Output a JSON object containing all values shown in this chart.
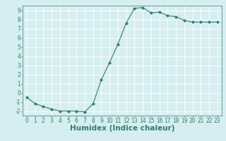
{
  "x": [
    0,
    1,
    2,
    3,
    4,
    5,
    6,
    7,
    8,
    9,
    10,
    11,
    12,
    13,
    14,
    15,
    16,
    17,
    18,
    19,
    20,
    21,
    22,
    23
  ],
  "y": [
    -0.5,
    -1.2,
    -1.5,
    -1.8,
    -2.0,
    -2.0,
    -2.0,
    -2.1,
    -1.2,
    1.4,
    3.3,
    5.3,
    7.6,
    9.2,
    9.3,
    8.7,
    8.8,
    8.4,
    8.3,
    7.9,
    7.7,
    7.7,
    7.7,
    7.7
  ],
  "line_color": "#2e7d6e",
  "marker": "D",
  "marker_size": 2.0,
  "bg_color": "#d6eef0",
  "grid_color": "#ffffff",
  "xlabel": "Humidex (Indice chaleur)",
  "xlabel_weight": "bold",
  "xlim": [
    -0.5,
    23.5
  ],
  "ylim": [
    -2.5,
    9.5
  ],
  "yticks": [
    -2,
    -1,
    0,
    1,
    2,
    3,
    4,
    5,
    6,
    7,
    8,
    9
  ],
  "xticks": [
    0,
    1,
    2,
    3,
    4,
    5,
    6,
    7,
    8,
    9,
    10,
    11,
    12,
    13,
    14,
    15,
    16,
    17,
    18,
    19,
    20,
    21,
    22,
    23
  ],
  "tick_label_size": 5.5,
  "xlabel_size": 7.5
}
